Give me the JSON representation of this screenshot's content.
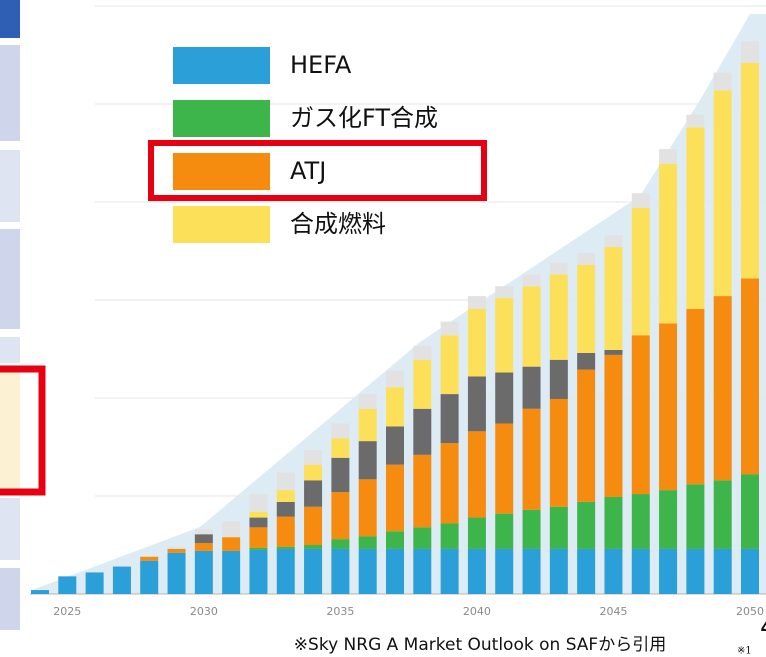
{
  "chart_data": {
    "type": "stacked-bar",
    "categories": [
      null,
      "2025",
      null,
      null,
      null,
      null,
      "2030",
      null,
      null,
      null,
      null,
      "2035",
      null,
      null,
      null,
      null,
      "2040",
      null,
      null,
      null,
      null,
      "2045",
      null,
      null,
      null,
      null,
      "2050"
    ],
    "series": [
      {
        "name": "HEFA",
        "color": "#2a9fd8",
        "values": [
          4,
          18,
          22,
          28,
          34,
          42,
          44,
          44,
          45,
          46,
          46,
          46,
          46,
          46,
          46,
          46,
          46,
          46,
          46,
          46,
          46,
          46,
          46,
          46,
          46,
          46,
          46
        ]
      },
      {
        "name": "ガス化FT合成",
        "color": "#3db54a",
        "values": [
          0,
          0,
          0,
          0,
          0,
          0,
          0,
          0,
          2,
          2,
          4,
          10,
          13,
          18,
          22,
          26,
          32,
          36,
          40,
          43,
          48,
          53,
          56,
          60,
          66,
          70,
          76
        ]
      },
      {
        "name": "ATJ",
        "color": "#f58b0f",
        "values": [
          0,
          0,
          0,
          0,
          4,
          4,
          8,
          14,
          21,
          31,
          39,
          48,
          58,
          68,
          74,
          82,
          88,
          92,
          103,
          110,
          135,
          145,
          162,
          170,
          179,
          188,
          200
        ]
      },
      {
        "color": "#6b6b6b",
        "values": [
          0,
          0,
          0,
          0,
          0,
          0,
          9,
          0,
          10,
          15,
          27,
          35,
          39,
          39,
          47,
          50,
          56,
          52,
          43,
          40,
          17,
          5,
          0,
          0,
          0,
          0,
          0
        ]
      },
      {
        "name": "合成燃料",
        "color": "#fde05a",
        "values": [
          0,
          0,
          0,
          0,
          0,
          0,
          0,
          0,
          6,
          12,
          16,
          20,
          33,
          40,
          50,
          60,
          69,
          76,
          82,
          87,
          90,
          105,
          130,
          163,
          185,
          210,
          220
        ]
      },
      {
        "color": "#e2e2e2",
        "values": [
          0,
          0,
          0,
          0,
          0,
          2,
          5,
          16,
          18,
          18,
          15,
          15,
          15,
          17,
          14,
          14,
          13,
          12,
          12,
          12,
          12,
          12,
          15,
          15,
          13,
          18,
          22
        ]
      }
    ],
    "ylim": [
      0,
      600
    ],
    "yticks": [
      100,
      200,
      300,
      400,
      500,
      600
    ],
    "grid": true,
    "legend": "upper left",
    "source": "※Sky NRG  A Market Outlook on SAFから引用",
    "footnote": "※1",
    "page_number": "4"
  }
}
